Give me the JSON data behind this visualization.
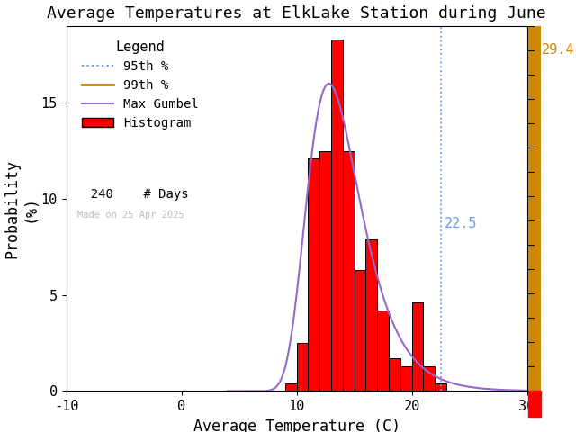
{
  "title": "Average Temperatures at ElkLake Station during June",
  "xlabel": "Average Temperature (C)",
  "ylabel": "Probability\n(%)",
  "xlim": [
    -10,
    30
  ],
  "ylim": [
    0,
    19
  ],
  "bar_left_edges": [
    9,
    10,
    11,
    12,
    13,
    14,
    15,
    16,
    17,
    18,
    19,
    20,
    21,
    22,
    23,
    24,
    25
  ],
  "bar_heights": [
    0.4,
    2.5,
    12.1,
    12.5,
    18.3,
    12.5,
    6.3,
    7.9,
    4.2,
    1.7,
    1.3,
    4.6,
    1.3,
    0.4,
    0.0,
    0.0,
    0.0
  ],
  "bar_color": "#ff0000",
  "bar_edgecolor": "#000000",
  "gumbel_color": "#9966cc",
  "pct95_color": "#6699ff",
  "pct99_color": "#cc8800",
  "pct95_value": 22.5,
  "pct99_value": 29.4,
  "n_days": 240,
  "made_on": "Made on 25 Apr 2025",
  "legend_title": "Legend",
  "right_panel_color": "#cc8800",
  "tick_label_fontsize": 11,
  "axis_label_fontsize": 12,
  "title_fontsize": 13,
  "legend_fontsize": 10,
  "gumbel_mu": 12.8,
  "gumbel_beta": 2.3
}
